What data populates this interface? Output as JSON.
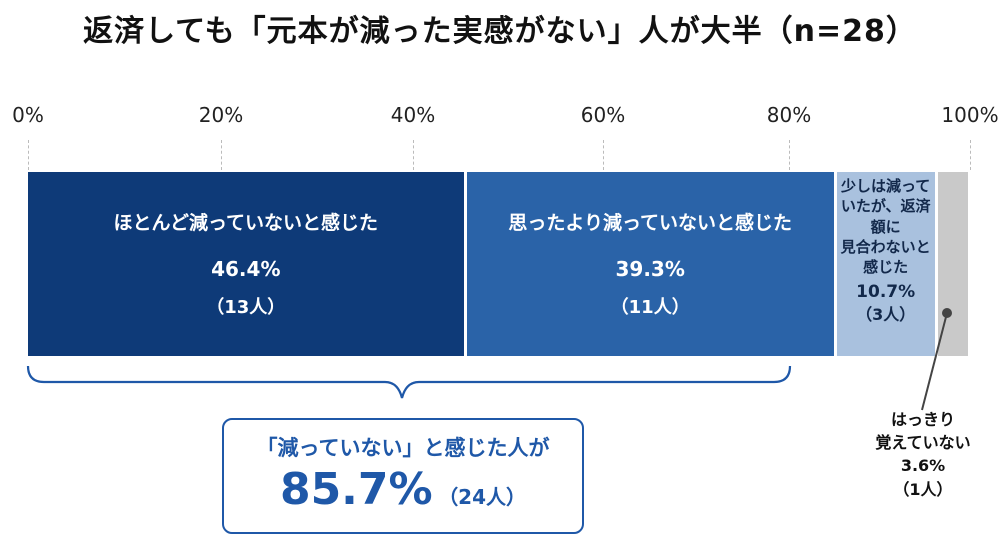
{
  "title": "返済しても「元本が減った実感がない」人が大半（n=28）",
  "axis": {
    "ticks": [
      "0%",
      "20%",
      "40%",
      "60%",
      "80%",
      "100%"
    ]
  },
  "chart_data": {
    "type": "bar",
    "orientation": "horizontal-stacked-100",
    "title": "返済しても「元本が減った実感がない」人が大半（n=28）",
    "xlim": [
      0,
      100
    ],
    "x_ticks": [
      "0%",
      "20%",
      "40%",
      "60%",
      "80%",
      "100%"
    ],
    "segments": [
      {
        "name": "ほとんど減っていないと感じた",
        "value": 46.4,
        "value_label": "46.4%",
        "count_label": "（13人）",
        "color": "#0e3a78"
      },
      {
        "name": "思ったより減っていないと感じた",
        "value": 39.3,
        "value_label": "39.3%",
        "count_label": "（11人）",
        "color": "#2a63a8"
      },
      {
        "name": "少しは減っていたが、返済額に見合わないと感じた",
        "name_lines": [
          "少しは減って",
          "いたが、返済額に",
          "見合わないと",
          "感じた"
        ],
        "value": 10.7,
        "value_label": "10.7%",
        "count_label": "（3人）",
        "color": "#a9c1de"
      },
      {
        "name": "はっきり覚えていない",
        "name_lines": [
          "はっきり",
          "覚えていない"
        ],
        "value": 3.6,
        "value_label": "3.6%",
        "count_label": "（1人）",
        "color": "#c9c9c9"
      }
    ],
    "summary": {
      "label": "「減っていない」と感じた人が",
      "value": "85.7%",
      "count": "（24人）"
    }
  }
}
